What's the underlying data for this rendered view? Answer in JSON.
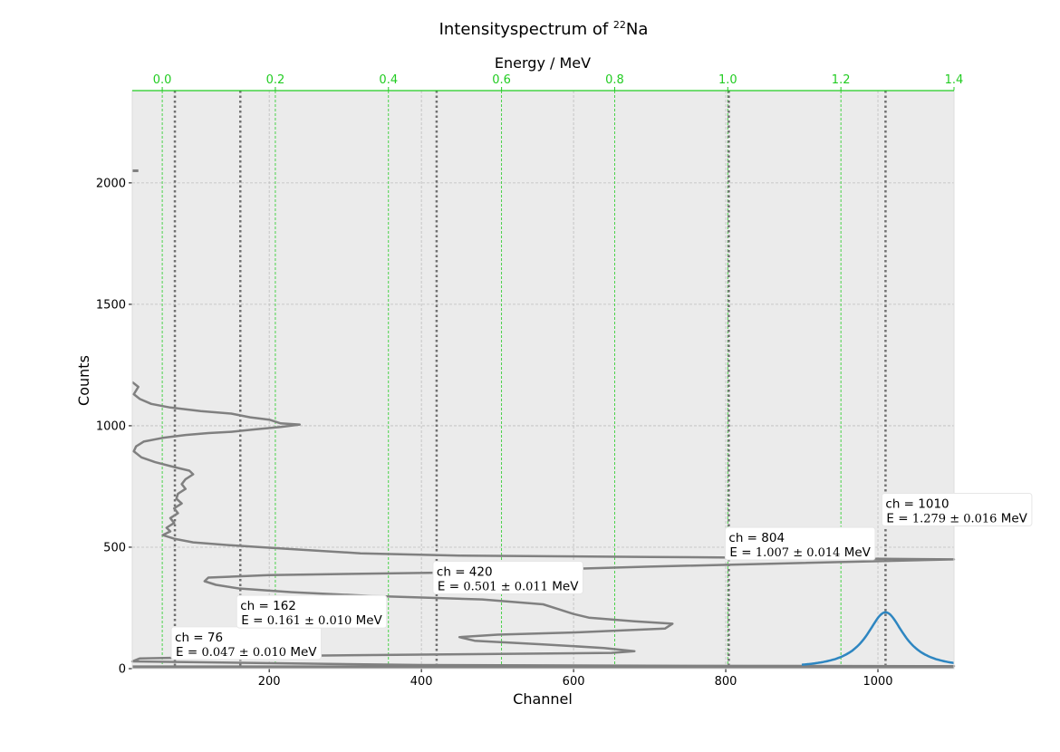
{
  "chart_data": {
    "type": "line",
    "title_prefix": "Intensityspectrum of ",
    "title_super": "22",
    "title_suffix": "Na",
    "xlabel": "Channel",
    "ylabel": "Counts",
    "x2label": "Energy / MeV",
    "xlim": [
      20,
      1100
    ],
    "ylim": [
      0,
      2380
    ],
    "x2lim": [
      -0.053,
      1.4
    ],
    "xticks": [
      200,
      400,
      600,
      800,
      1000
    ],
    "yticks": [
      0,
      500,
      1000,
      1500,
      2000
    ],
    "x2ticks": [
      0.0,
      0.2,
      0.4,
      0.6,
      0.8,
      1.0,
      1.2,
      1.4
    ],
    "x2tick_labels": [
      "0.0",
      "0.2",
      "0.4",
      "0.6",
      "0.8",
      "1.0",
      "1.2",
      "1.4"
    ],
    "xtick_labels": [
      "200",
      "400",
      "600",
      "800",
      "1000"
    ],
    "ytick_labels": [
      "0",
      "500",
      "1000",
      "1500",
      "2000"
    ],
    "grid": true,
    "colors": {
      "background": "#ebebeb",
      "spectrum": "#808080",
      "fit": "#2e86c1",
      "energy_grid": "#22cc22",
      "peak_marker": "#707070"
    },
    "spectrum": [
      [
        20,
        1180
      ],
      [
        28,
        1160
      ],
      [
        22,
        1130
      ],
      [
        30,
        1110
      ],
      [
        45,
        1090
      ],
      [
        70,
        1075
      ],
      [
        110,
        1060
      ],
      [
        150,
        1050
      ],
      [
        175,
        1035
      ],
      [
        200,
        1025
      ],
      [
        215,
        1010
      ],
      [
        240,
        1005
      ],
      [
        215,
        995
      ],
      [
        180,
        985
      ],
      [
        150,
        975
      ],
      [
        120,
        970
      ],
      [
        90,
        962
      ],
      [
        60,
        950
      ],
      [
        35,
        935
      ],
      [
        25,
        915
      ],
      [
        22,
        895
      ],
      [
        32,
        870
      ],
      [
        50,
        850
      ],
      [
        75,
        830
      ],
      [
        95,
        815
      ],
      [
        100,
        800
      ],
      [
        90,
        780
      ],
      [
        85,
        760
      ],
      [
        90,
        740
      ],
      [
        80,
        720
      ],
      [
        78,
        700
      ],
      [
        85,
        680
      ],
      [
        75,
        660
      ],
      [
        80,
        640
      ],
      [
        70,
        620
      ],
      [
        75,
        600
      ],
      [
        65,
        580
      ],
      [
        70,
        565
      ],
      [
        60,
        550
      ],
      [
        75,
        535
      ],
      [
        100,
        520
      ],
      [
        140,
        510
      ],
      [
        190,
        500
      ],
      [
        240,
        490
      ],
      [
        320,
        475
      ],
      [
        450,
        465
      ],
      [
        700,
        460
      ],
      [
        900,
        455
      ],
      [
        1100,
        450
      ],
      [
        700,
        420
      ],
      [
        420,
        395
      ],
      [
        300,
        390
      ],
      [
        200,
        385
      ],
      [
        120,
        375
      ],
      [
        115,
        360
      ],
      [
        130,
        345
      ],
      [
        160,
        330
      ],
      [
        230,
        315
      ],
      [
        330,
        300
      ],
      [
        480,
        285
      ],
      [
        560,
        265
      ],
      [
        580,
        245
      ],
      [
        600,
        225
      ],
      [
        620,
        210
      ],
      [
        680,
        195
      ],
      [
        730,
        185
      ],
      [
        720,
        165
      ],
      [
        610,
        150
      ],
      [
        500,
        140
      ],
      [
        450,
        130
      ],
      [
        470,
        115
      ],
      [
        560,
        100
      ],
      [
        640,
        85
      ],
      [
        680,
        72
      ],
      [
        650,
        65
      ],
      [
        400,
        58
      ],
      [
        200,
        52
      ],
      [
        30,
        42
      ],
      [
        20,
        30
      ],
      [
        400,
        15
      ],
      [
        700,
        12
      ],
      [
        1100,
        10
      ],
      [
        30,
        8
      ]
    ],
    "fit_curve": {
      "center": 1010,
      "amplitude": 232,
      "gamma": 30,
      "x_start": 900,
      "x_end": 1100
    },
    "peaks": [
      {
        "channel": 76,
        "label": "ch = 76",
        "energy_prefix": "E  = ",
        "energy_value": "0.047 ± 0.010",
        "energy_unit": " MeV"
      },
      {
        "channel": 162,
        "label": "ch = 162",
        "energy_prefix": "E  = ",
        "energy_value": "0.161 ± 0.010",
        "energy_unit": " MeV"
      },
      {
        "channel": 420,
        "label": "ch = 420",
        "energy_prefix": "E  = ",
        "energy_value": "0.501 ± 0.011",
        "energy_unit": " MeV"
      },
      {
        "channel": 804,
        "label": "ch = 804",
        "energy_prefix": "E  = ",
        "energy_value": "1.007 ± 0.014",
        "energy_unit": " MeV"
      },
      {
        "channel": 1010,
        "label": "ch = 1010",
        "energy_prefix": "E  = ",
        "energy_value": "1.279 ± 0.016",
        "energy_unit": " MeV"
      }
    ]
  }
}
